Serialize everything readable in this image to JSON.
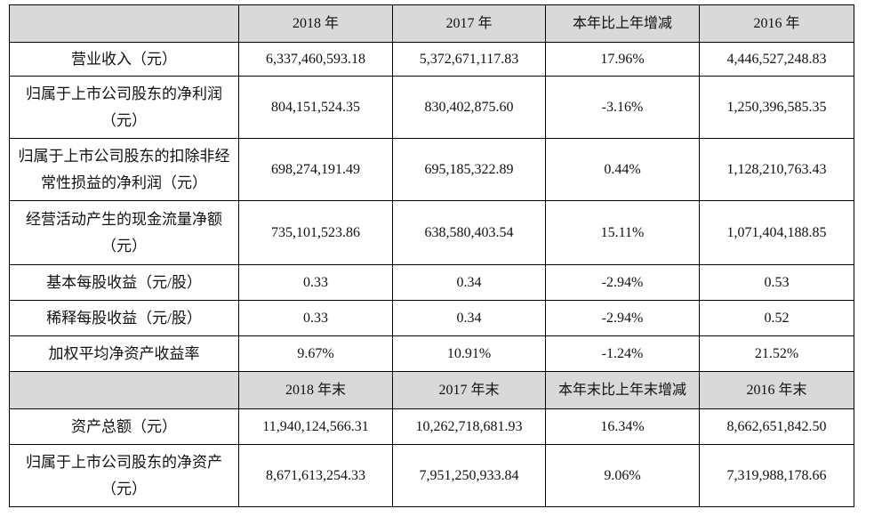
{
  "table": {
    "header1": [
      "",
      "2018 年",
      "2017 年",
      "本年比上年增减",
      "2016 年"
    ],
    "rows1": [
      [
        "营业收入（元）",
        "6,337,460,593.18",
        "5,372,671,117.83",
        "17.96%",
        "4,446,527,248.83"
      ],
      [
        "归属于上市公司股东的净利润（元）",
        "804,151,524.35",
        "830,402,875.60",
        "-3.16%",
        "1,250,396,585.35"
      ],
      [
        "归属于上市公司股东的扣除非经常性损益的净利润（元）",
        "698,274,191.49",
        "695,185,322.89",
        "0.44%",
        "1,128,210,763.43"
      ],
      [
        "经营活动产生的现金流量净额（元）",
        "735,101,523.86",
        "638,580,403.54",
        "15.11%",
        "1,071,404,188.85"
      ],
      [
        "基本每股收益（元/股）",
        "0.33",
        "0.34",
        "-2.94%",
        "0.53"
      ],
      [
        "稀释每股收益（元/股）",
        "0.33",
        "0.34",
        "-2.94%",
        "0.52"
      ],
      [
        "加权平均净资产收益率",
        "9.67%",
        "10.91%",
        "-1.24%",
        "21.52%"
      ]
    ],
    "header2": [
      "",
      "2018 年末",
      "2017 年末",
      "本年末比上年末增减",
      "2016 年末"
    ],
    "rows2": [
      [
        "资产总额（元）",
        "11,940,124,566.31",
        "10,262,718,681.93",
        "16.34%",
        "8,662,651,842.50"
      ],
      [
        "归属于上市公司股东的净资产（元）",
        "8,671,613,254.33",
        "7,951,250,933.84",
        "9.06%",
        "7,319,988,178.66"
      ]
    ]
  }
}
